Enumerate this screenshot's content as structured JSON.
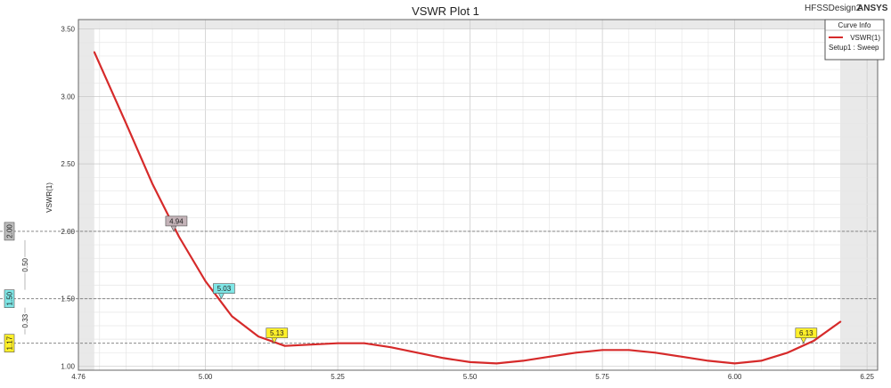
{
  "window": {
    "design_label": "HFSSDesign2",
    "brand": "ANSYS"
  },
  "legend": {
    "title": "Curve Info",
    "line1": "VSWR(1)",
    "line2": "Setup1 : Sweep"
  },
  "colors": {
    "curve": "#d62a2a",
    "background": "#ffffff",
    "band": "#e9e9e9"
  },
  "chart_data": {
    "type": "line",
    "title": "VSWR Plot 1",
    "ylabel": "VSWR(1)",
    "xlabel": "",
    "xlim": [
      4.76,
      6.27
    ],
    "ylim": [
      0.97,
      3.57
    ],
    "x_ticks": [
      4.76,
      5.0,
      5.25,
      5.5,
      5.75,
      6.0,
      6.25
    ],
    "x_tick_labels": [
      "4.76",
      "5.00",
      "5.25",
      "5.50",
      "5.75",
      "6.00",
      "6.25"
    ],
    "y_ticks": [
      1.0,
      1.5,
      2.0,
      2.5,
      3.0,
      3.5
    ],
    "y_tick_labels": [
      "1.00",
      "1.50",
      "2.00",
      "2.50",
      "3.00",
      "3.50"
    ],
    "grid": true,
    "legend_position": "top-right",
    "series": [
      {
        "name": "VSWR(1)",
        "color": "#d62a2a",
        "x": [
          4.79,
          4.85,
          4.9,
          4.95,
          5.0,
          5.05,
          5.1,
          5.15,
          5.2,
          5.25,
          5.3,
          5.35,
          5.4,
          5.45,
          5.5,
          5.55,
          5.6,
          5.65,
          5.7,
          5.75,
          5.8,
          5.85,
          5.9,
          5.95,
          6.0,
          6.05,
          6.1,
          6.15,
          6.2
        ],
        "y": [
          3.33,
          2.8,
          2.35,
          1.96,
          1.63,
          1.37,
          1.22,
          1.15,
          1.16,
          1.17,
          1.17,
          1.14,
          1.1,
          1.06,
          1.03,
          1.02,
          1.04,
          1.07,
          1.1,
          1.12,
          1.12,
          1.1,
          1.07,
          1.04,
          1.02,
          1.04,
          1.1,
          1.19,
          1.33
        ]
      }
    ],
    "reference_lines": [
      {
        "y": 2.0,
        "label": "2.00",
        "color": "#bdbdbd"
      },
      {
        "y": 1.5,
        "label": "1.50",
        "color": "#7fe6e6"
      },
      {
        "y": 1.17,
        "label": "1.17",
        "color": "#fff02a"
      }
    ],
    "delta_labels": [
      {
        "label": "0.50",
        "y_from": 2.0,
        "y_to": 1.5
      },
      {
        "label": "0.33",
        "y_from": 1.5,
        "y_to": 1.17
      }
    ],
    "markers": [
      {
        "x": 4.94,
        "y": 2.0,
        "label": "4.94",
        "color": "#c4b3b8"
      },
      {
        "x": 5.03,
        "y": 1.5,
        "label": "5.03",
        "color": "#7fe6e6"
      },
      {
        "x": 5.13,
        "y": 1.17,
        "label": "5.13",
        "color": "#fff02a"
      },
      {
        "x": 6.13,
        "y": 1.17,
        "label": "6.13",
        "color": "#fff02a"
      }
    ]
  }
}
